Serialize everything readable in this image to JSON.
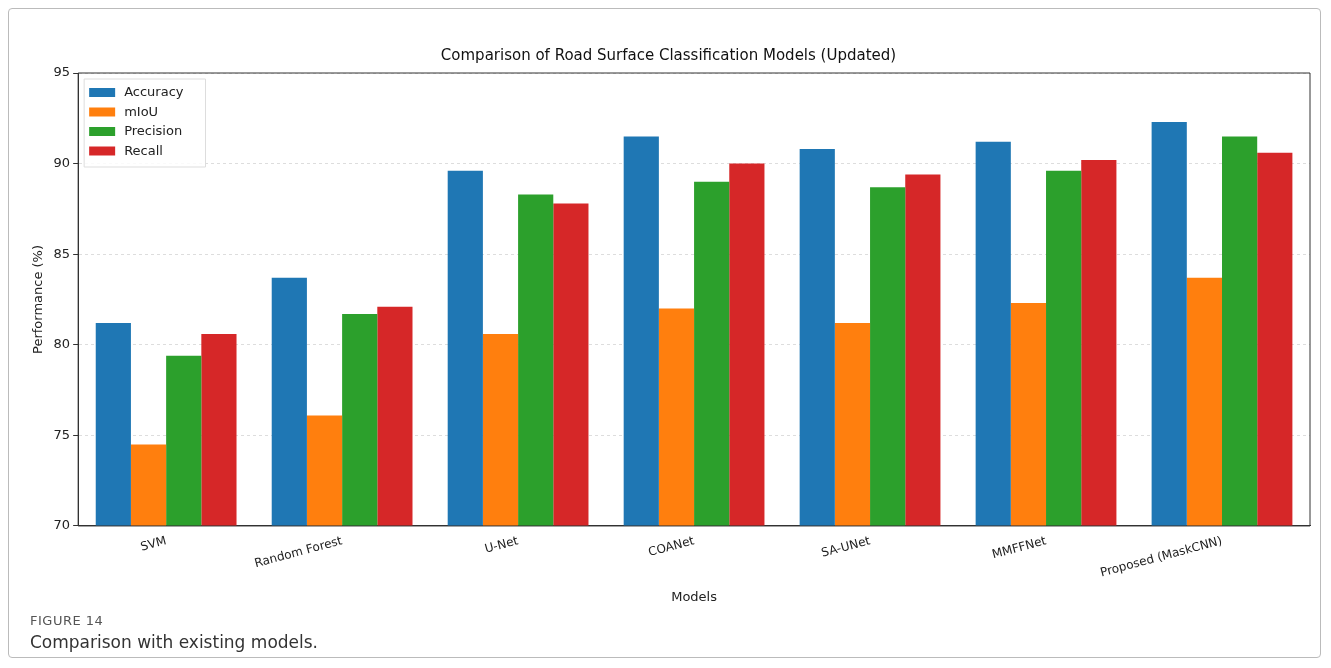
{
  "chart_data": {
    "type": "bar",
    "title": "Comparison of Road Surface Classification Models (Updated)",
    "xlabel": "Models",
    "ylabel": "Performance (%)",
    "categories": [
      "SVM",
      "Random Forest",
      "U-Net",
      "COANet",
      "SA-UNet",
      "MMFFNet",
      "Proposed (MaskCNN)"
    ],
    "series": [
      {
        "name": "Accuracy",
        "color": "#1f77b4",
        "values": [
          81.2,
          83.7,
          89.6,
          91.5,
          90.8,
          91.2,
          92.3
        ]
      },
      {
        "name": "mIoU",
        "color": "#ff7f0e",
        "values": [
          74.5,
          76.1,
          80.6,
          82.0,
          81.2,
          82.3,
          83.7
        ]
      },
      {
        "name": "Precision",
        "color": "#2ca02c",
        "values": [
          79.4,
          81.7,
          88.3,
          89.0,
          88.7,
          89.6,
          91.5
        ]
      },
      {
        "name": "Recall",
        "color": "#d62728",
        "values": [
          80.6,
          82.1,
          87.8,
          90.0,
          89.4,
          90.2,
          90.6
        ]
      }
    ],
    "ylim": [
      70,
      95
    ],
    "yticks": [
      70,
      75,
      80,
      85,
      90,
      95
    ],
    "grid": "y",
    "legend": "top left",
    "annotations": [
      "FIGURE 14",
      "Comparison with existing models."
    ]
  }
}
